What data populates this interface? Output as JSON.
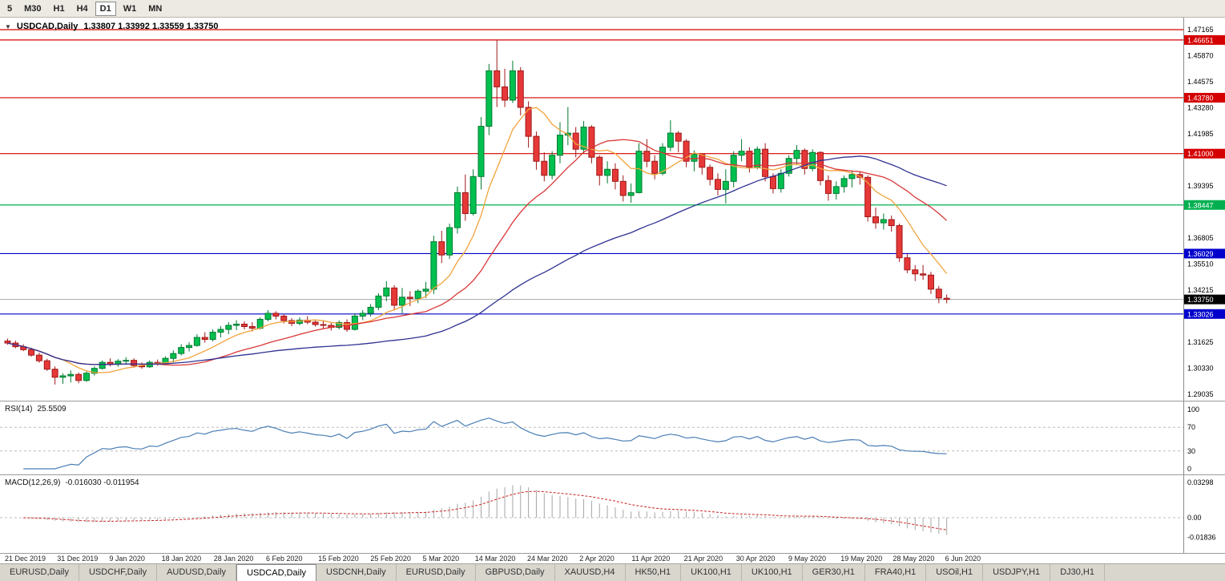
{
  "toolbar": {
    "timeframes": [
      {
        "label": "5",
        "active": false
      },
      {
        "label": "M30",
        "active": false
      },
      {
        "label": "H1",
        "active": false
      },
      {
        "label": "H4",
        "active": false
      },
      {
        "label": "D1",
        "active": true
      },
      {
        "label": "W1",
        "active": false
      },
      {
        "label": "MN",
        "active": false
      }
    ]
  },
  "chart": {
    "collapse_icon": "▼",
    "symbol_title": "USDCAD,Daily",
    "ohlc": "1.33807 1.33992 1.33559 1.33750"
  },
  "indicators": {
    "rsi_title": "RSI(14)",
    "rsi_value": "25.5509",
    "macd_title": "MACD(12,26,9)",
    "macd_values": "-0.016030 -0.011954"
  },
  "chart_data": {
    "type": "candlestick",
    "symbol": "USDCAD",
    "timeframe": "Daily",
    "current_bar": {
      "open": 1.33807,
      "high": 1.33992,
      "low": 1.33559,
      "close": 1.3375
    },
    "price_axis": {
      "top": 1.47165,
      "step": 0.01295,
      "count": 15
    },
    "current_price": 1.3375,
    "hlines": [
      {
        "price": 1.47165,
        "color": "#d40000",
        "badge": false
      },
      {
        "price": 1.46651,
        "color": "#d40000",
        "badge": true
      },
      {
        "price": 1.4378,
        "color": "#d40000",
        "badge": true
      },
      {
        "price": 1.41,
        "color": "#d40000",
        "badge": true
      },
      {
        "price": 1.38447,
        "color": "#00b050",
        "badge": true
      },
      {
        "price": 1.36029,
        "color": "#0000cc",
        "badge": true
      },
      {
        "price": 1.33026,
        "color": "#0000cc",
        "badge": true
      }
    ],
    "colors": {
      "bull_fill": "#00c050",
      "bull_stroke": "#007a30",
      "bear_fill": "#e63838",
      "bear_stroke": "#a01818",
      "current_line": "#a8a8a8",
      "current_badge": "#000000"
    },
    "mas": [
      {
        "period": 8,
        "color": "#f2a33c"
      },
      {
        "period": 20,
        "color": "#d93636"
      },
      {
        "period": 50,
        "color": "#2e3192"
      }
    ],
    "rsi": {
      "period": 14,
      "value": 25.5509,
      "levels": [
        100,
        70,
        30,
        0
      ],
      "color": "#4a7eb5"
    },
    "macd": {
      "fast": 12,
      "slow": 26,
      "signal": 9,
      "main_value": -0.01603,
      "signal_value": -0.011954,
      "hist_color": "#a6a6a6",
      "signal_color": "#cc2222",
      "axis": [
        {
          "label": "0.03298",
          "value": 0.03298
        },
        {
          "label": "0.00",
          "value": 0
        },
        {
          "label": "-0.01836",
          "value": -0.01836
        }
      ]
    },
    "date_labels": [
      "21 Dec 2019",
      "31 Dec 2019",
      "9 Jan 2020",
      "18 Jan 2020",
      "28 Jan 2020",
      "6 Feb 2020",
      "15 Feb 2020",
      "25 Feb 2020",
      "5 Mar 2020",
      "14 Mar 2020",
      "24 Mar 2020",
      "2 Apr 2020",
      "11 Apr 2020",
      "21 Apr 2020",
      "30 Apr 2020",
      "9 May 2020",
      "19 May 2020",
      "28 May 2020",
      "6 Jun 2020"
    ],
    "candles": [
      [
        1.3168,
        1.318,
        1.315,
        1.3158
      ],
      [
        1.3158,
        1.317,
        1.3132,
        1.314
      ],
      [
        1.314,
        1.3152,
        1.3118,
        1.3125
      ],
      [
        1.3125,
        1.3135,
        1.309,
        1.3098
      ],
      [
        1.3098,
        1.311,
        1.306,
        1.307
      ],
      [
        1.307,
        1.308,
        1.302,
        1.3028
      ],
      [
        1.3028,
        1.3042,
        1.2952,
        1.2988
      ],
      [
        1.2988,
        1.3008,
        1.2955,
        1.2995
      ],
      [
        1.2995,
        1.3022,
        1.2962,
        1.3002
      ],
      [
        1.3002,
        1.3012,
        1.2958,
        1.2972
      ],
      [
        1.2972,
        1.3018,
        1.2965,
        1.3008
      ],
      [
        1.3008,
        1.3042,
        1.2996,
        1.3032
      ],
      [
        1.3032,
        1.3072,
        1.3026,
        1.3062
      ],
      [
        1.3062,
        1.3082,
        1.3042,
        1.3052
      ],
      [
        1.3052,
        1.3078,
        1.304,
        1.3068
      ],
      [
        1.3068,
        1.3088,
        1.3052,
        1.3072
      ],
      [
        1.3072,
        1.3082,
        1.3036,
        1.3046
      ],
      [
        1.3046,
        1.3062,
        1.303,
        1.304
      ],
      [
        1.304,
        1.3072,
        1.3034,
        1.3062
      ],
      [
        1.3062,
        1.3076,
        1.3046,
        1.3056
      ],
      [
        1.3056,
        1.3092,
        1.305,
        1.3082
      ],
      [
        1.3082,
        1.3122,
        1.3062,
        1.3106
      ],
      [
        1.3106,
        1.3152,
        1.3096,
        1.3136
      ],
      [
        1.3136,
        1.3162,
        1.3116,
        1.3146
      ],
      [
        1.3146,
        1.3202,
        1.314,
        1.3186
      ],
      [
        1.3186,
        1.3212,
        1.316,
        1.3176
      ],
      [
        1.3176,
        1.3226,
        1.3166,
        1.3212
      ],
      [
        1.3212,
        1.3242,
        1.3186,
        1.3226
      ],
      [
        1.3226,
        1.3262,
        1.3202,
        1.3246
      ],
      [
        1.3246,
        1.3272,
        1.3222,
        1.3252
      ],
      [
        1.3252,
        1.3266,
        1.3226,
        1.324
      ],
      [
        1.324,
        1.3262,
        1.3216,
        1.3232
      ],
      [
        1.3232,
        1.3286,
        1.3226,
        1.3276
      ],
      [
        1.3276,
        1.3322,
        1.3266,
        1.3306
      ],
      [
        1.3306,
        1.3316,
        1.3276,
        1.3292
      ],
      [
        1.3292,
        1.3302,
        1.3256,
        1.327
      ],
      [
        1.327,
        1.3282,
        1.3242,
        1.3256
      ],
      [
        1.3256,
        1.3286,
        1.3246,
        1.3272
      ],
      [
        1.3272,
        1.3292,
        1.3252,
        1.3262
      ],
      [
        1.3262,
        1.3276,
        1.324,
        1.325
      ],
      [
        1.325,
        1.327,
        1.323,
        1.3246
      ],
      [
        1.3246,
        1.3262,
        1.322,
        1.3236
      ],
      [
        1.3236,
        1.327,
        1.3226,
        1.326
      ],
      [
        1.326,
        1.3276,
        1.3214,
        1.3226
      ],
      [
        1.3226,
        1.3306,
        1.322,
        1.3292
      ],
      [
        1.3292,
        1.3322,
        1.3272,
        1.3306
      ],
      [
        1.3306,
        1.3352,
        1.329,
        1.3336
      ],
      [
        1.3336,
        1.3406,
        1.3322,
        1.3392
      ],
      [
        1.3392,
        1.3466,
        1.3366,
        1.3432
      ],
      [
        1.3432,
        1.3446,
        1.332,
        1.3346
      ],
      [
        1.3346,
        1.3432,
        1.3306,
        1.3386
      ],
      [
        1.3386,
        1.3416,
        1.3342,
        1.338
      ],
      [
        1.338,
        1.3426,
        1.3356,
        1.3416
      ],
      [
        1.3416,
        1.3462,
        1.3382,
        1.3426
      ],
      [
        1.3426,
        1.3692,
        1.3402,
        1.3662
      ],
      [
        1.3662,
        1.3716,
        1.3556,
        1.3596
      ],
      [
        1.3596,
        1.3752,
        1.3576,
        1.3732
      ],
      [
        1.3732,
        1.3936,
        1.3702,
        1.3906
      ],
      [
        1.3906,
        1.3996,
        1.3766,
        1.3802
      ],
      [
        1.3802,
        1.4022,
        1.3792,
        1.3986
      ],
      [
        1.3986,
        1.4282,
        1.3922,
        1.4236
      ],
      [
        1.4236,
        1.4546,
        1.4192,
        1.4512
      ],
      [
        1.4512,
        1.46651,
        1.4332,
        1.4432
      ],
      [
        1.4432,
        1.4522,
        1.4332,
        1.4366
      ],
      [
        1.4366,
        1.4562,
        1.4352,
        1.4512
      ],
      [
        1.4512,
        1.453,
        1.429,
        1.433
      ],
      [
        1.433,
        1.436,
        1.413,
        1.4186
      ],
      [
        1.4186,
        1.421,
        1.402,
        1.4062
      ],
      [
        1.4062,
        1.4106,
        1.3962,
        1.3992
      ],
      [
        1.3992,
        1.4112,
        1.3972,
        1.4092
      ],
      [
        1.4092,
        1.4256,
        1.4052,
        1.4192
      ],
      [
        1.4192,
        1.4332,
        1.4142,
        1.4202
      ],
      [
        1.4202,
        1.4232,
        1.4082,
        1.4122
      ],
      [
        1.4122,
        1.4262,
        1.4102,
        1.4232
      ],
      [
        1.4232,
        1.4242,
        1.4052,
        1.4082
      ],
      [
        1.4082,
        1.4092,
        1.3942,
        1.3992
      ],
      [
        1.3992,
        1.4062,
        1.3952,
        1.4022
      ],
      [
        1.4022,
        1.4052,
        1.3922,
        1.3962
      ],
      [
        1.3962,
        1.3992,
        1.3862,
        1.3892
      ],
      [
        1.3892,
        1.3952,
        1.3856,
        1.3906
      ],
      [
        1.3906,
        1.4152,
        1.3902,
        1.4112
      ],
      [
        1.4112,
        1.4172,
        1.4032,
        1.4062
      ],
      [
        1.4062,
        1.4092,
        1.3972,
        1.4002
      ],
      [
        1.4002,
        1.4152,
        1.3992,
        1.4132
      ],
      [
        1.4132,
        1.4266,
        1.4112,
        1.4202
      ],
      [
        1.4202,
        1.4212,
        1.4106,
        1.4162
      ],
      [
        1.4162,
        1.4172,
        1.4032,
        1.4062
      ],
      [
        1.4062,
        1.4116,
        1.4012,
        1.4096
      ],
      [
        1.4096,
        1.4102,
        1.3996,
        1.4032
      ],
      [
        1.4032,
        1.4046,
        1.3942,
        1.3972
      ],
      [
        1.3972,
        1.4002,
        1.3892,
        1.3922
      ],
      [
        1.3922,
        1.4022,
        1.3852,
        1.3962
      ],
      [
        1.3962,
        1.4112,
        1.3932,
        1.4092
      ],
      [
        1.4092,
        1.4172,
        1.4062,
        1.4112
      ],
      [
        1.4112,
        1.4132,
        1.4006,
        1.4032
      ],
      [
        1.4032,
        1.4136,
        1.4022,
        1.4122
      ],
      [
        1.4122,
        1.4152,
        1.3962,
        1.3986
      ],
      [
        1.3986,
        1.4002,
        1.3902,
        1.3926
      ],
      [
        1.3926,
        1.4022,
        1.3906,
        1.4002
      ],
      [
        1.4002,
        1.4092,
        1.3986,
        1.4076
      ],
      [
        1.4076,
        1.4142,
        1.4042,
        1.4116
      ],
      [
        1.4116,
        1.4126,
        1.3996,
        1.4026
      ],
      [
        1.4026,
        1.4122,
        1.4012,
        1.4106
      ],
      [
        1.4106,
        1.4112,
        1.3942,
        1.3966
      ],
      [
        1.3966,
        1.3992,
        1.3866,
        1.3902
      ],
      [
        1.3902,
        1.3962,
        1.3872,
        1.3936
      ],
      [
        1.3936,
        1.3992,
        1.3906,
        1.3976
      ],
      [
        1.3976,
        1.4016,
        1.3932,
        1.3996
      ],
      [
        1.3996,
        1.4012,
        1.3946,
        1.3982
      ],
      [
        1.3982,
        1.3992,
        1.3762,
        1.3786
      ],
      [
        1.3786,
        1.3832,
        1.3726,
        1.3756
      ],
      [
        1.3756,
        1.3802,
        1.3722,
        1.3772
      ],
      [
        1.3772,
        1.3792,
        1.3712,
        1.3742
      ],
      [
        1.3742,
        1.3752,
        1.3562,
        1.3582
      ],
      [
        1.3582,
        1.3602,
        1.3506,
        1.3522
      ],
      [
        1.3522,
        1.3546,
        1.3466,
        1.3502
      ],
      [
        1.3502,
        1.3546,
        1.3472,
        1.3496
      ],
      [
        1.3496,
        1.3512,
        1.3402,
        1.3426
      ],
      [
        1.3426,
        1.3442,
        1.3356,
        1.3382
      ],
      [
        1.33807,
        1.33992,
        1.33559,
        1.3375
      ]
    ]
  },
  "tabs": [
    {
      "label": "EURUSD,Daily",
      "active": false
    },
    {
      "label": "USDCHF,Daily",
      "active": false
    },
    {
      "label": "AUDUSD,Daily",
      "active": false
    },
    {
      "label": "USDCAD,Daily",
      "active": true
    },
    {
      "label": "USDCNH,Daily",
      "active": false
    },
    {
      "label": "EURUSD,Daily",
      "active": false
    },
    {
      "label": "GBPUSD,Daily",
      "active": false
    },
    {
      "label": "XAUUSD,H4",
      "active": false
    },
    {
      "label": "HK50,H1",
      "active": false
    },
    {
      "label": "UK100,H1",
      "active": false
    },
    {
      "label": "UK100,H1",
      "active": false
    },
    {
      "label": "GER30,H1",
      "active": false
    },
    {
      "label": "FRA40,H1",
      "active": false
    },
    {
      "label": "USOil,H1",
      "active": false
    },
    {
      "label": "USDJPY,H1",
      "active": false
    },
    {
      "label": "DJ30,H1",
      "active": false
    }
  ]
}
